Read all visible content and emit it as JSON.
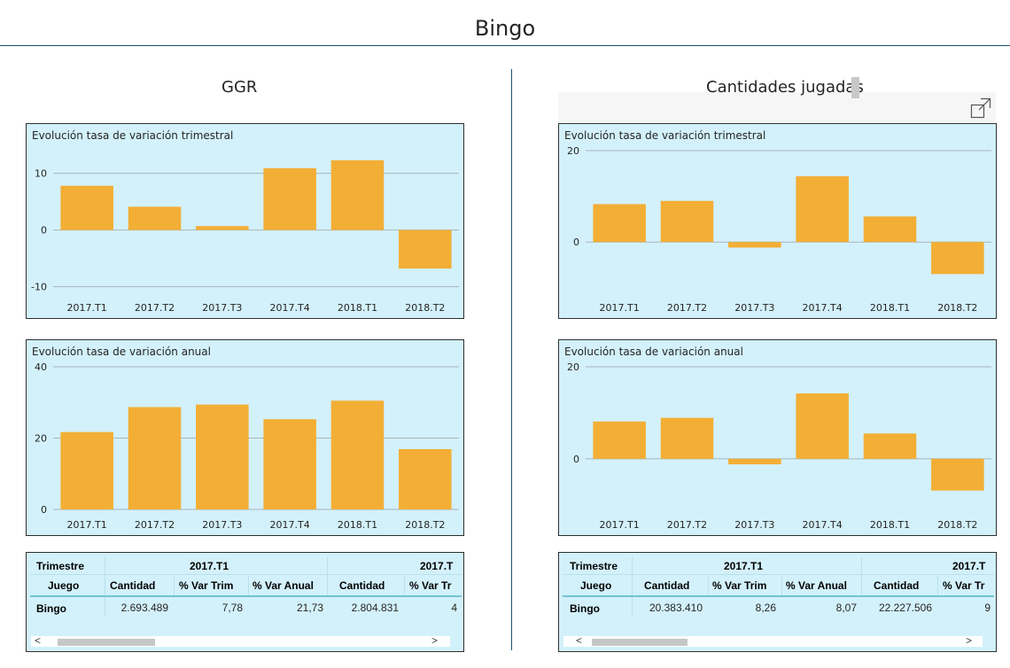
{
  "page": {
    "title": "Bingo"
  },
  "colors": {
    "bar": "#f3ae35",
    "panel_bg": "#d3f1fb",
    "gridline": "#a9b4b8",
    "divider": "#1d4f6e"
  },
  "icons": {
    "expand": "expand-icon"
  },
  "sections": [
    {
      "title": "GGR",
      "table": {
        "header_row1": {
          "label": "Trimestre",
          "period": "2017.T1",
          "period_next": "2017.T"
        },
        "header_row2": [
          "Juego",
          "Cantidad",
          "% Var Trim",
          "% Var Anual",
          "Cantidad",
          "% Var Tr"
        ],
        "row": {
          "label": "Bingo",
          "values": [
            "2.693.489",
            "7,78",
            "21,73",
            "2.804.831",
            "4"
          ]
        },
        "scroll": {
          "left": "<",
          "right": ">"
        }
      }
    },
    {
      "title": "Cantidades jugadas",
      "table": {
        "header_row1": {
          "label": "Trimestre",
          "period": "2017.T1",
          "period_next": "2017.T"
        },
        "header_row2": [
          "Juego",
          "Cantidad",
          "% Var Trim",
          "% Var Anual",
          "Cantidad",
          "% Var Tr"
        ],
        "row": {
          "label": "Bingo",
          "values": [
            "20.383.410",
            "8,26",
            "8,07",
            "22.227.506",
            "9"
          ]
        },
        "scroll": {
          "left": "<",
          "right": ">"
        }
      }
    }
  ],
  "chart_data": [
    {
      "type": "bar",
      "title": "Evolución tasa de variación trimestral",
      "categories": [
        "2017.T1",
        "2017.T2",
        "2017.T3",
        "2017.T4",
        "2018.T1",
        "2018.T2"
      ],
      "values": [
        7.8,
        4.1,
        0.7,
        10.9,
        12.3,
        -6.8
      ],
      "yticks": [
        -10,
        0,
        10
      ],
      "ylim": [
        -11,
        14
      ],
      "grid": true
    },
    {
      "type": "bar",
      "title": "Evolución tasa de variación anual",
      "categories": [
        "2017.T1",
        "2017.T2",
        "2017.T3",
        "2017.T4",
        "2018.T1",
        "2018.T2"
      ],
      "values": [
        21.7,
        28.7,
        29.4,
        25.3,
        30.5,
        16.9
      ],
      "yticks": [
        0,
        20,
        40
      ],
      "ylim": [
        0,
        40
      ],
      "grid": true
    },
    {
      "type": "bar",
      "title": "Evolución tasa de variación trimestral",
      "categories": [
        "2017.T1",
        "2017.T2",
        "2017.T3",
        "2017.T4",
        "2018.T1",
        "2018.T2"
      ],
      "values": [
        8.3,
        9.0,
        -1.2,
        14.4,
        5.6,
        -7.0
      ],
      "yticks": [
        0,
        20
      ],
      "ylim": [
        -11,
        20
      ],
      "grid": true
    },
    {
      "type": "bar",
      "title": "Evolución tasa de variación anual",
      "categories": [
        "2017.T1",
        "2017.T2",
        "2017.T3",
        "2017.T4",
        "2018.T1",
        "2018.T2"
      ],
      "values": [
        8.1,
        8.9,
        -1.2,
        14.2,
        5.5,
        -6.9
      ],
      "yticks": [
        0,
        20
      ],
      "ylim": [
        -11,
        20
      ],
      "grid": true
    }
  ]
}
